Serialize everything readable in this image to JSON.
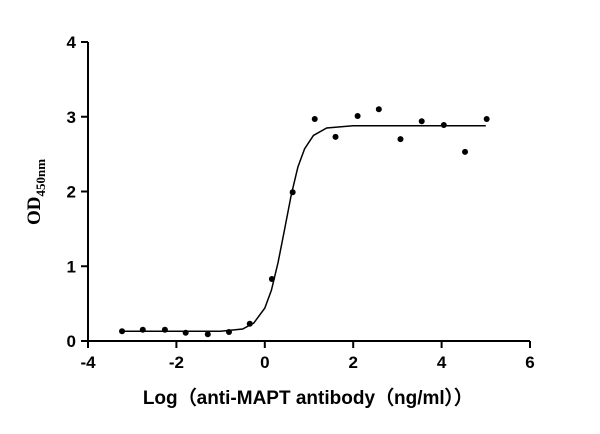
{
  "chart_data": {
    "type": "scatter",
    "x": [
      -3.23,
      -2.76,
      -2.26,
      -1.79,
      -1.29,
      -0.81,
      -0.34,
      0.16,
      0.63,
      1.13,
      1.6,
      2.1,
      2.58,
      3.07,
      3.55,
      4.05,
      4.53,
      5.02
    ],
    "values": [
      0.13,
      0.15,
      0.15,
      0.11,
      0.09,
      0.12,
      0.23,
      0.83,
      1.99,
      2.97,
      2.73,
      3.01,
      3.1,
      2.7,
      2.94,
      2.89,
      2.53,
      2.97
    ],
    "color": "#000000",
    "curve": {
      "x": [
        -3.2,
        -2,
        -1,
        -0.5,
        -0.25,
        0,
        0.15,
        0.3,
        0.45,
        0.6,
        0.75,
        0.9,
        1.1,
        1.4,
        2,
        3,
        4,
        5
      ],
      "values": [
        0.13,
        0.13,
        0.13,
        0.16,
        0.24,
        0.44,
        0.68,
        1.05,
        1.5,
        1.96,
        2.33,
        2.57,
        2.75,
        2.85,
        2.88,
        2.88,
        2.88,
        2.88
      ]
    },
    "xlabel": "Log（anti-MAPT antibody（ng/ml））",
    "ylabel": "OD",
    "ylabel_subscript": "450nm",
    "xlim": [
      -4,
      6
    ],
    "xticks": [
      -4,
      -2,
      0,
      2,
      4,
      6
    ],
    "ylim": [
      0,
      4
    ],
    "yticks": [
      0,
      1,
      2,
      3,
      4
    ]
  }
}
